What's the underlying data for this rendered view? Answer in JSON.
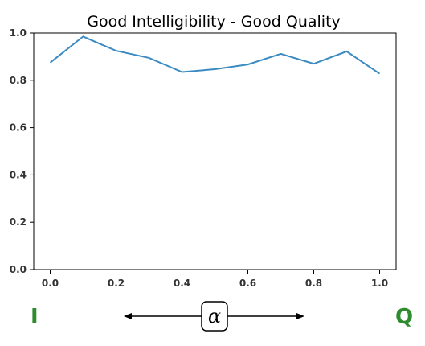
{
  "chart_data": {
    "type": "line",
    "title": "Good Intelligibility - Good Quality",
    "x": [
      0.0,
      0.1,
      0.2,
      0.3,
      0.4,
      0.5,
      0.6,
      0.7,
      0.8,
      0.9,
      1.0
    ],
    "series": [
      {
        "values": [
          0.875,
          0.985,
          0.925,
          0.895,
          0.835,
          0.847,
          0.867,
          0.912,
          0.87,
          0.922,
          0.828
        ]
      }
    ],
    "xticks": [
      "0.0",
      "0.2",
      "0.4",
      "0.6",
      "0.8",
      "1.0"
    ],
    "yticks": [
      "0.0",
      "0.2",
      "0.4",
      "0.6",
      "0.8",
      "1.0"
    ],
    "xlim": [
      -0.05,
      1.05
    ],
    "ylim": [
      0.0,
      1.0
    ],
    "grid": false,
    "line_color": "#3b8bc2"
  },
  "annotation": {
    "left_label": "I",
    "right_label": "Q",
    "center_symbol": "α",
    "label_color": "#2e8b2e"
  }
}
